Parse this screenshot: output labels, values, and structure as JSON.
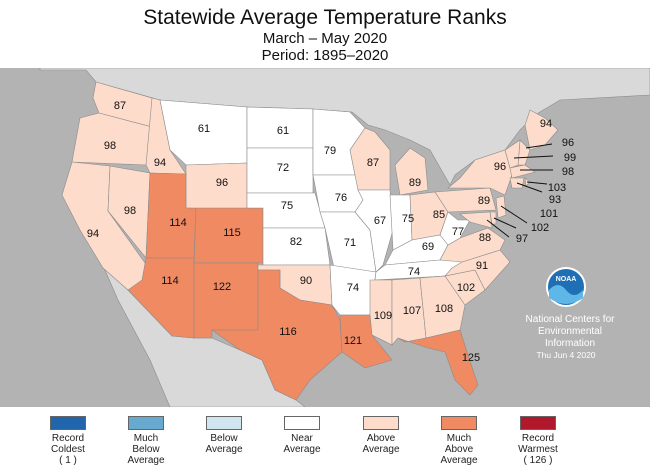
{
  "header": {
    "title": "Statewide Average Temperature Ranks",
    "subtitle": "March – May 2020",
    "period": "Period: 1895–2020"
  },
  "map": {
    "colors": {
      "ocean": "#b3b3b3",
      "land_outside": "#d9d9d9",
      "near": "#ffffff",
      "above": "#fddccb",
      "much_above": "#ef8a62",
      "border": "#8c8c8c",
      "callout_line": "#111111"
    },
    "states": [
      {
        "id": "WA",
        "rank": 87,
        "category": "above"
      },
      {
        "id": "OR",
        "rank": 98,
        "category": "above"
      },
      {
        "id": "CA",
        "rank": 94,
        "category": "above"
      },
      {
        "id": "ID",
        "rank": 94,
        "category": "above"
      },
      {
        "id": "NV",
        "rank": 98,
        "category": "above"
      },
      {
        "id": "MT",
        "rank": 61,
        "category": "near"
      },
      {
        "id": "WY",
        "rank": 96,
        "category": "above"
      },
      {
        "id": "UT",
        "rank": 114,
        "category": "much_above"
      },
      {
        "id": "CO",
        "rank": 115,
        "category": "much_above"
      },
      {
        "id": "AZ",
        "rank": 114,
        "category": "much_above"
      },
      {
        "id": "NM",
        "rank": 122,
        "category": "much_above"
      },
      {
        "id": "ND",
        "rank": 61,
        "category": "near"
      },
      {
        "id": "SD",
        "rank": 72,
        "category": "near"
      },
      {
        "id": "NE",
        "rank": 75,
        "category": "near"
      },
      {
        "id": "KS",
        "rank": 82,
        "category": "near"
      },
      {
        "id": "OK",
        "rank": 90,
        "category": "above"
      },
      {
        "id": "TX",
        "rank": 116,
        "category": "much_above"
      },
      {
        "id": "MN",
        "rank": 79,
        "category": "near"
      },
      {
        "id": "IA",
        "rank": 76,
        "category": "near"
      },
      {
        "id": "MO",
        "rank": 71,
        "category": "near"
      },
      {
        "id": "AR",
        "rank": 74,
        "category": "near"
      },
      {
        "id": "LA",
        "rank": 121,
        "category": "much_above"
      },
      {
        "id": "WI",
        "rank": 87,
        "category": "above"
      },
      {
        "id": "IL",
        "rank": 67,
        "category": "near"
      },
      {
        "id": "MI",
        "rank": 89,
        "category": "above"
      },
      {
        "id": "IN",
        "rank": 75,
        "category": "near"
      },
      {
        "id": "OH",
        "rank": 85,
        "category": "above"
      },
      {
        "id": "KY",
        "rank": 69,
        "category": "near"
      },
      {
        "id": "TN",
        "rank": 74,
        "category": "near"
      },
      {
        "id": "MS",
        "rank": 109,
        "category": "above"
      },
      {
        "id": "AL",
        "rank": 107,
        "category": "above"
      },
      {
        "id": "GA",
        "rank": 108,
        "category": "above"
      },
      {
        "id": "FL",
        "rank": 125,
        "category": "much_above"
      },
      {
        "id": "SC",
        "rank": 102,
        "category": "above"
      },
      {
        "id": "NC",
        "rank": 91,
        "category": "above"
      },
      {
        "id": "VA",
        "rank": 88,
        "category": "above"
      },
      {
        "id": "WV",
        "rank": 77,
        "category": "near"
      },
      {
        "id": "PA",
        "rank": 89,
        "category": "above"
      },
      {
        "id": "NY",
        "rank": 96,
        "category": "above"
      },
      {
        "id": "ME",
        "rank": 94,
        "category": "above"
      },
      {
        "id": "NH",
        "rank": 96,
        "category": "above"
      },
      {
        "id": "VT",
        "rank": 99,
        "category": "above"
      },
      {
        "id": "MA",
        "rank": 98,
        "category": "above"
      },
      {
        "id": "RI",
        "rank": 103,
        "category": "above"
      },
      {
        "id": "CT",
        "rank": 93,
        "category": "above"
      },
      {
        "id": "NJ",
        "rank": 101,
        "category": "above"
      },
      {
        "id": "DE",
        "rank": 102,
        "category": "above"
      },
      {
        "id": "MD",
        "rank": 97,
        "category": "above"
      }
    ]
  },
  "noaa": {
    "logo_text": "NOAA",
    "line1": "National Centers for",
    "line2": "Environmental",
    "line3": "Information",
    "date": "Thu Jun  4 2020",
    "color": "#ffffff"
  },
  "legend": [
    {
      "line1": "Record",
      "line2": "Coldest",
      "line3": "( 1 )",
      "color": "#2166ac"
    },
    {
      "line1": "Much",
      "line2": "Below",
      "line3": "Average",
      "color": "#67a9cf"
    },
    {
      "line1": "Below",
      "line2": "Average",
      "line3": "",
      "color": "#d1e5f0"
    },
    {
      "line1": "Near",
      "line2": "Average",
      "line3": "",
      "color": "#ffffff"
    },
    {
      "line1": "Above",
      "line2": "Average",
      "line3": "",
      "color": "#fddccb"
    },
    {
      "line1": "Much",
      "line2": "Above",
      "line3": "Average",
      "color": "#ef8a62"
    },
    {
      "line1": "Record",
      "line2": "Warmest",
      "line3": "( 126 )",
      "color": "#b2182b"
    }
  ]
}
